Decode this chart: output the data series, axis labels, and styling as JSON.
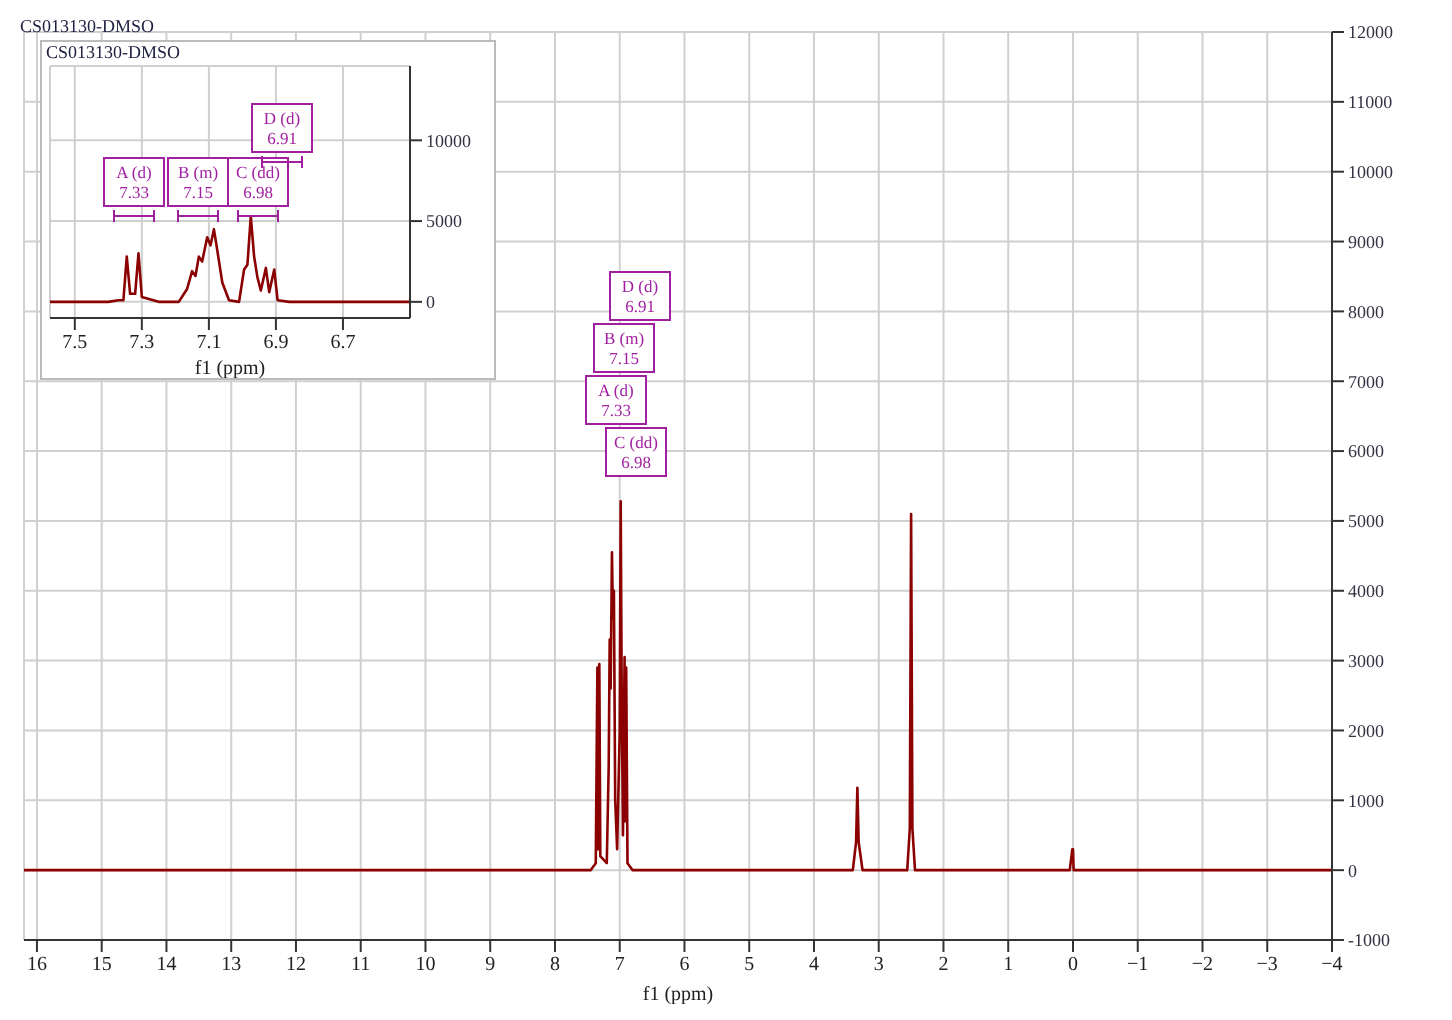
{
  "chart_data": [
    {
      "type": "line",
      "title": "CS013130-DMSO",
      "xlabel": "f1 (ppm)",
      "xlim": [
        16.2,
        -4
      ],
      "ylim": [
        -1000,
        12000
      ],
      "xticks": [
        16,
        15,
        14,
        13,
        12,
        11,
        10,
        9,
        8,
        7,
        6,
        5,
        4,
        3,
        2,
        1,
        0,
        -1,
        -2,
        -3,
        -4
      ],
      "yticks": [
        -1000,
        0,
        1000,
        2000,
        3000,
        4000,
        5000,
        6000,
        7000,
        8000,
        9000,
        10000,
        11000,
        12000
      ],
      "grid": true,
      "marker": "none",
      "series": [
        {
          "color": "#8b0000",
          "x": [
            16.2,
            7.45,
            7.37,
            7.345,
            7.335,
            7.315,
            7.3,
            7.2,
            7.17,
            7.155,
            7.14,
            7.12,
            7.105,
            7.09,
            7.07,
            7.04,
            7.0,
            6.985,
            6.97,
            6.95,
            6.925,
            6.915,
            6.9,
            6.88,
            6.8,
            3.4,
            3.35,
            3.33,
            3.31,
            3.25,
            2.56,
            2.52,
            2.5,
            2.48,
            2.44,
            0.05,
            0.01,
            0,
            -0.01,
            -4
          ],
          "values": [
            0,
            0,
            100,
            2900,
            300,
            2950,
            200,
            100,
            1500,
            3300,
            2600,
            4550,
            3600,
            4000,
            1000,
            300,
            2000,
            5280,
            2600,
            500,
            3050,
            700,
            2900,
            100,
            0,
            0,
            400,
            1180,
            400,
            0,
            0,
            600,
            5100,
            600,
            0,
            0,
            300,
            300,
            0,
            0
          ]
        }
      ],
      "annotations": [
        "A (d)\n7.33",
        "B (m)\n7.15",
        "C (dd)\n6.98",
        "D (d)\n6.91"
      ]
    },
    {
      "type": "line",
      "title": "CS013130-DMSO",
      "xlabel": "f1 (ppm)",
      "xlim": [
        7.574,
        6.5
      ],
      "ylim": [
        -1000,
        14600
      ],
      "xticks": [
        7.5,
        7.3,
        7.1,
        6.9,
        6.7
      ],
      "yticks": [
        0,
        5000,
        10000
      ],
      "grid": true,
      "marker": "none",
      "series": [
        {
          "color": "#8b0000",
          "x": [
            7.574,
            7.4,
            7.37,
            7.355,
            7.345,
            7.335,
            7.32,
            7.31,
            7.3,
            7.25,
            7.19,
            7.165,
            7.15,
            7.14,
            7.13,
            7.12,
            7.105,
            7.095,
            7.085,
            7.075,
            7.06,
            7.04,
            7.01,
            6.995,
            6.985,
            6.975,
            6.965,
            6.955,
            6.945,
            6.93,
            6.92,
            6.905,
            6.895,
            6.86,
            6.5
          ],
          "values": [
            0,
            0,
            100,
            100,
            2800,
            500,
            500,
            3000,
            300,
            0,
            0,
            800,
            1900,
            1600,
            2800,
            2500,
            4000,
            3500,
            4500,
            3200,
            1200,
            100,
            0,
            2000,
            2300,
            5300,
            2800,
            1500,
            700,
            2100,
            600,
            2000,
            100,
            0,
            0
          ]
        }
      ],
      "annotations": [
        "A (d)\n7.33",
        "B (m)\n7.15",
        "C (dd)\n6.98",
        "D (d)\n6.91"
      ]
    }
  ]
}
